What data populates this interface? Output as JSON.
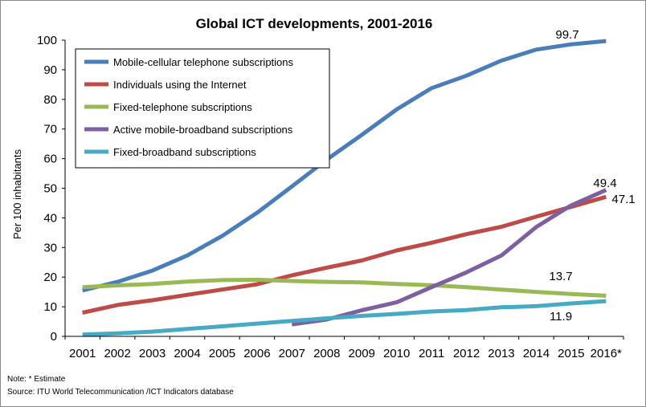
{
  "chart_data": {
    "type": "line",
    "title": "Global ICT developments, 2001-2016",
    "ylabel": "Per 100 inhabitants",
    "xlabel": "",
    "ylim": [
      0,
      100
    ],
    "yticks": [
      0,
      10,
      20,
      30,
      40,
      50,
      60,
      70,
      80,
      90,
      100
    ],
    "categories": [
      "2001",
      "2002",
      "2003",
      "2004",
      "2005",
      "2006",
      "2007",
      "2008",
      "2009",
      "2010",
      "2011",
      "2012",
      "2013",
      "2014",
      "2015",
      "2016*"
    ],
    "grid": false,
    "legend_position": "top-left",
    "series": [
      {
        "name": "Mobile-cellular telephone subscriptions",
        "color": "#4a7ebb",
        "values": [
          15.5,
          18.4,
          22.2,
          27.3,
          33.9,
          41.7,
          50.6,
          59.7,
          68.0,
          76.6,
          83.8,
          88.0,
          93.1,
          96.8,
          98.6,
          99.7
        ]
      },
      {
        "name": "Individuals using the Internet",
        "color": "#be4b48",
        "values": [
          8.0,
          10.6,
          12.2,
          14.0,
          15.8,
          17.6,
          20.6,
          23.2,
          25.6,
          29.0,
          31.6,
          34.5,
          37.0,
          40.4,
          43.7,
          47.1
        ]
      },
      {
        "name": "Fixed-telephone subscriptions",
        "color": "#98b954",
        "values": [
          16.6,
          17.2,
          17.7,
          18.5,
          19.0,
          19.1,
          18.7,
          18.4,
          18.2,
          17.7,
          17.3,
          16.6,
          15.8,
          15.0,
          14.3,
          13.7
        ]
      },
      {
        "name": "Active mobile-broadband subscriptions",
        "color": "#7d60a0",
        "values": [
          null,
          null,
          null,
          null,
          null,
          null,
          4.0,
          5.7,
          8.8,
          11.5,
          16.6,
          21.6,
          27.3,
          36.9,
          44.2,
          49.4
        ]
      },
      {
        "name": "Fixed-broadband subscriptions",
        "color": "#46aac5",
        "values": [
          0.6,
          1.0,
          1.6,
          2.5,
          3.4,
          4.3,
          5.2,
          6.1,
          6.9,
          7.6,
          8.4,
          8.9,
          9.8,
          10.2,
          11.1,
          11.9
        ]
      }
    ],
    "data_labels": [
      "99.7",
      "49.4",
      "47.1",
      "13.7",
      "11.9"
    ]
  },
  "notes": {
    "note": "Note: * Estimate",
    "source": "Source: ITU World Telecommunication /ICT Indicators database"
  }
}
